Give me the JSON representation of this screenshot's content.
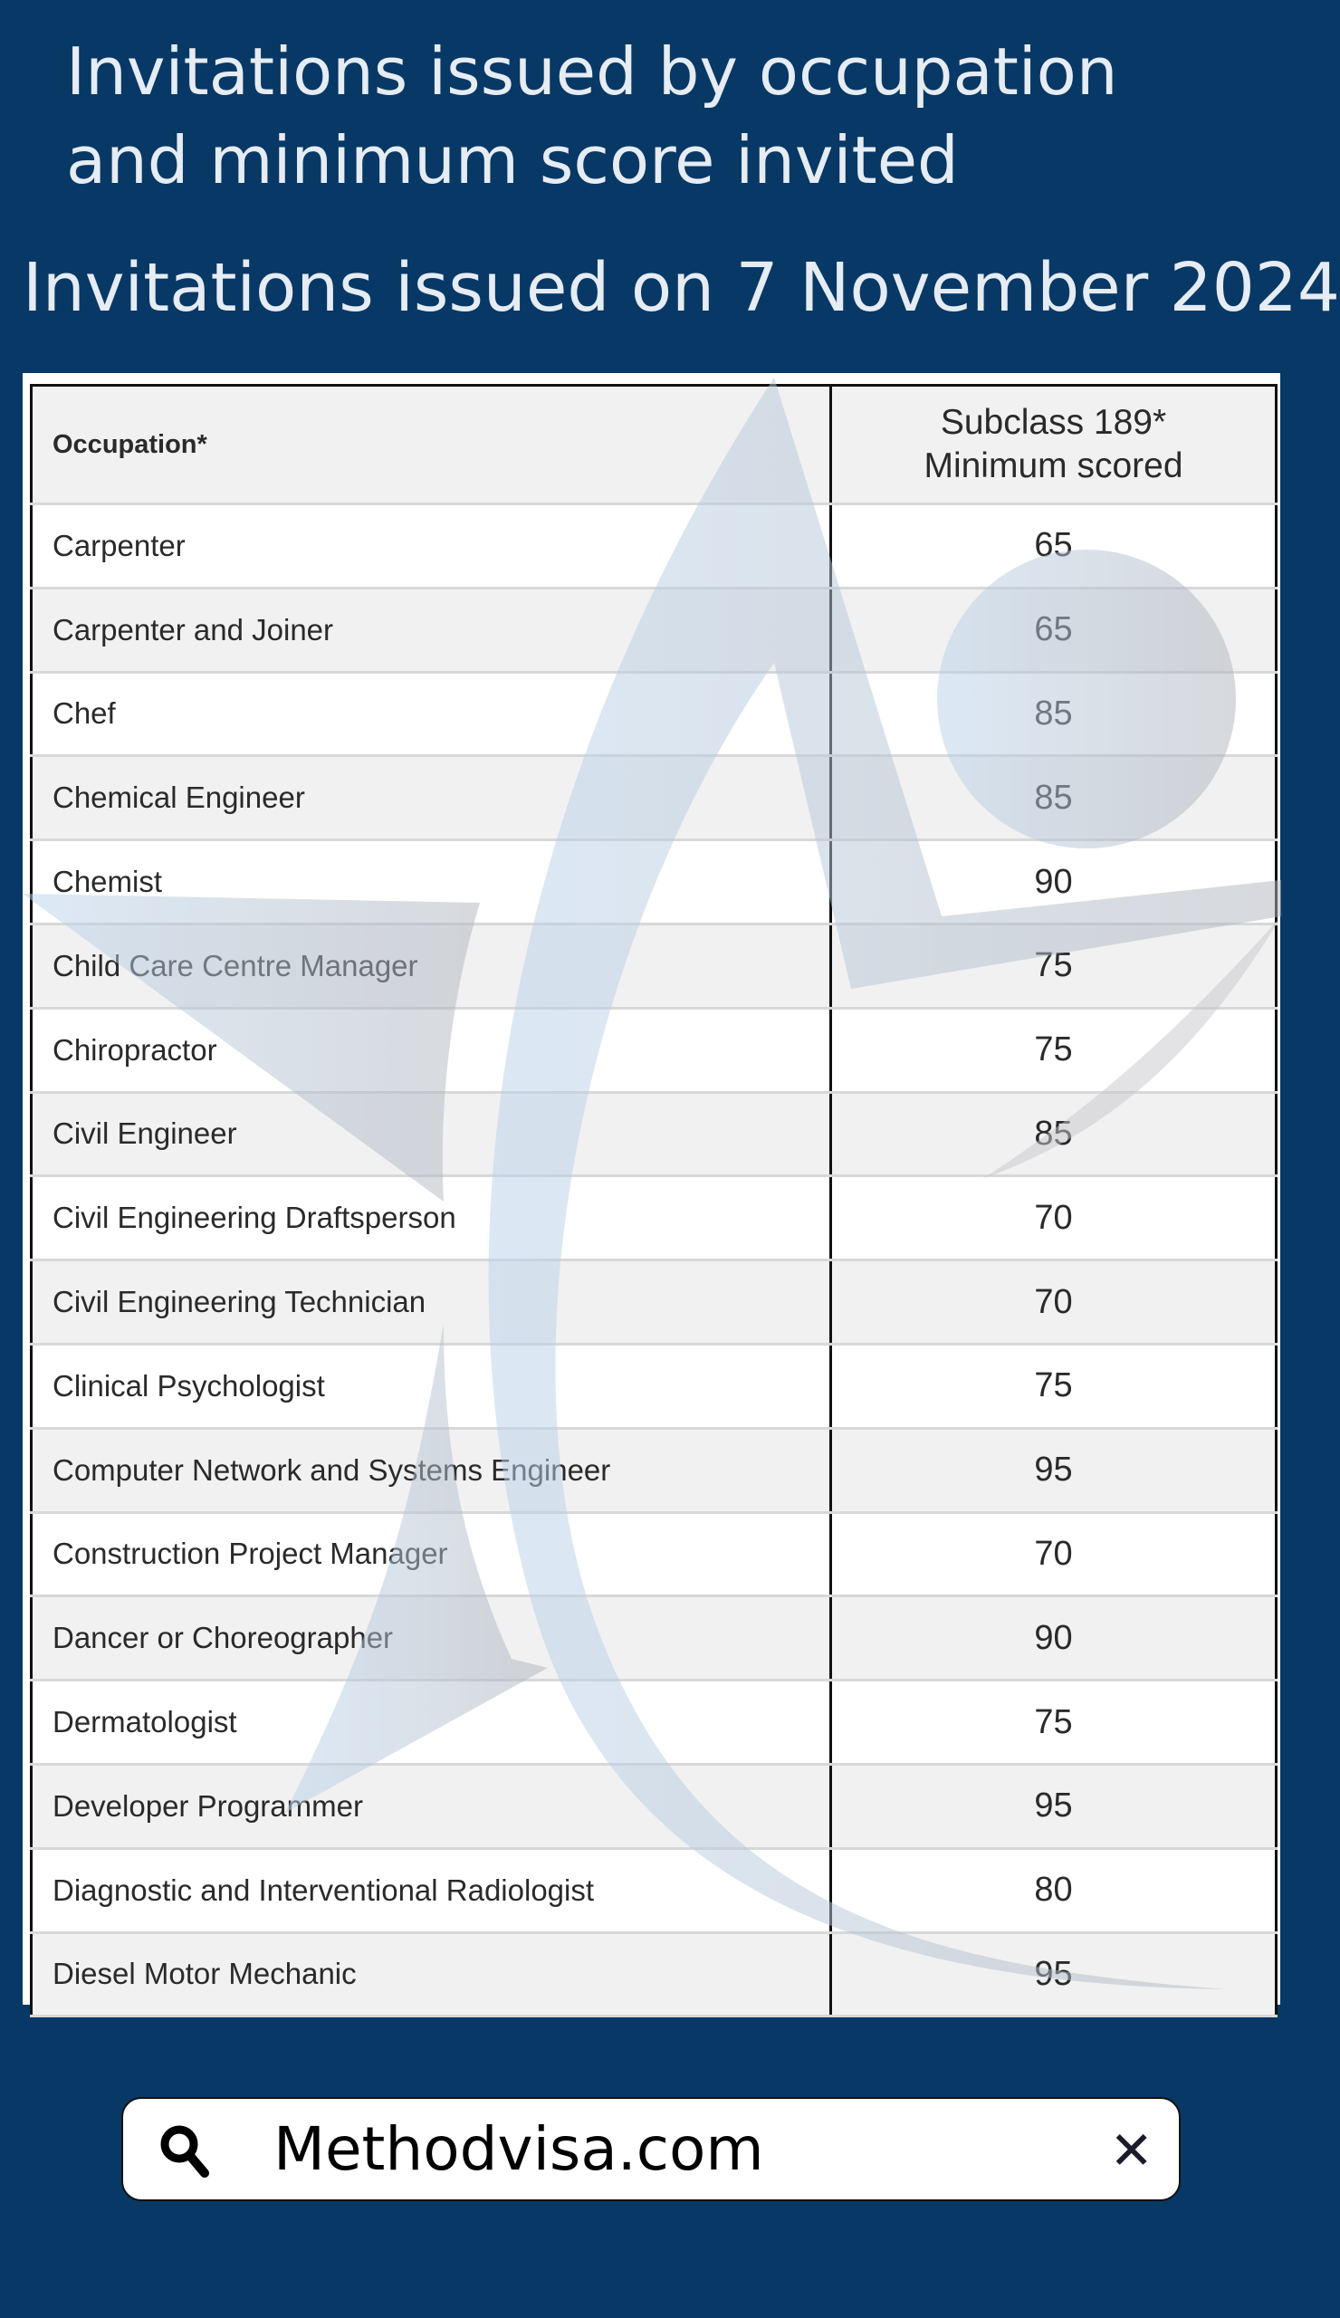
{
  "header": {
    "title_line1": "Invitations issued by occupation",
    "title_line2": "and minimum score invited",
    "subtitle": "Invitations issued on 7 November 2024"
  },
  "table": {
    "columns": [
      "Occupation*",
      "Subclass 189*",
      "Minimum scored"
    ],
    "rows": [
      {
        "occupation": "Carpenter",
        "score": "65"
      },
      {
        "occupation": "Carpenter and Joiner",
        "score": "65"
      },
      {
        "occupation": "Chef",
        "score": "85"
      },
      {
        "occupation": "Chemical Engineer",
        "score": "85"
      },
      {
        "occupation": "Chemist",
        "score": "90"
      },
      {
        "occupation": "Child Care Centre Manager",
        "score": "75"
      },
      {
        "occupation": "Chiropractor",
        "score": "75"
      },
      {
        "occupation": "Civil Engineer",
        "score": "85"
      },
      {
        "occupation": "Civil Engineering Draftsperson",
        "score": "70"
      },
      {
        "occupation": "Civil Engineering Technician",
        "score": "70"
      },
      {
        "occupation": "Clinical Psychologist",
        "score": "75"
      },
      {
        "occupation": "Computer Network and Systems Engineer",
        "score": "95"
      },
      {
        "occupation": "Construction Project Manager",
        "score": "70"
      },
      {
        "occupation": "Dancer or Choreographer",
        "score": "90"
      },
      {
        "occupation": "Dermatologist",
        "score": "75"
      },
      {
        "occupation": "Developer Programmer",
        "score": "95"
      },
      {
        "occupation": "Diagnostic and Interventional Radiologist",
        "score": "80"
      },
      {
        "occupation": "Diesel Motor Mechanic",
        "score": "95"
      }
    ]
  },
  "search": {
    "value": "Methodvisa.com",
    "icon": "search-icon",
    "clear_icon": "close-icon",
    "clear_label": "✕"
  },
  "colors": {
    "background": "#083865",
    "text_light": "#e6ecf3"
  }
}
